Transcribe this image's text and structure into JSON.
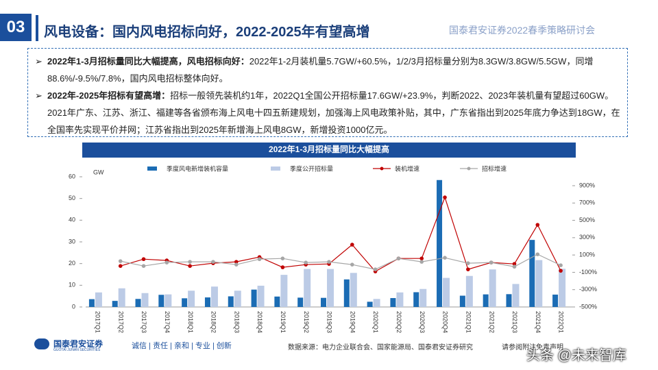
{
  "header": {
    "number": "03",
    "title": "风电设备：国内风电招标向好，2022-2025年有望高增",
    "event": "国泰君安证券2022春季策略研讨会"
  },
  "bullets": [
    {
      "bold": "2022年1-3月招标量同比大幅提高，风电招标向好：",
      "text": "2022年1-2月装机量5.7GW/+60.5%，1/2/3月招标量分别为8.3GW/3.8GW/5.5GW，同增88.6%/-9.5%/7.8%，国内风电招标整体向好。"
    },
    {
      "bold": "2022年-2025年招标有望高增：",
      "text": "招标一般领先装机约1年，2022Q1全国公开招标量17.6GW/+23.9%，判断2022、2023年装机量有望超过60GW。2021年广东、江苏、浙江、福建等各省颁布海上风电十四五新建规划，加强海上风电政策补贴，其中，广东省指出到2025年底力争达到18GW，在全国率先实现平价并网；江苏省指出到2025年新增海上风电8GW，新增投资1000亿元。"
    }
  ],
  "chart_data": {
    "type": "bar-line",
    "title": "2022年1-3月招标量同比大幅提高",
    "y_label": "GW",
    "categories": [
      "2017Q1",
      "2017Q2",
      "2017Q3",
      "2017Q4",
      "2018Q1",
      "2018Q2",
      "2018Q3",
      "2018Q4",
      "2019Q1",
      "2019Q2",
      "2019Q3",
      "2019Q4",
      "2020Q1",
      "2020Q2",
      "2020Q3",
      "2020Q4",
      "2021Q1",
      "2021Q2",
      "2021Q3",
      "2021Q4",
      "2022Q1"
    ],
    "series": [
      {
        "name": "季度风电新增装机容量",
        "kind": "bar",
        "color": "#1b6cb4",
        "values": [
          3.6,
          2.8,
          3.7,
          5.6,
          4.0,
          4.4,
          4.9,
          8.0,
          4.8,
          4.3,
          4.2,
          12.7,
          2.4,
          4.1,
          6.8,
          58.5,
          5.2,
          5.8,
          5.9,
          30.9,
          5.7
        ]
      },
      {
        "name": "季度公开招标量",
        "kind": "bar",
        "color": "#bccbe6",
        "values": [
          6.7,
          8.6,
          6.4,
          5.8,
          7.5,
          9.4,
          7.5,
          9.8,
          14.8,
          17.5,
          17.5,
          15.7,
          3.7,
          6.7,
          8.3,
          13.4,
          14.3,
          17.3,
          10.6,
          21.6,
          17.6
        ]
      },
      {
        "name": "装机增速",
        "kind": "line",
        "axis": "y2",
        "color": "#c00000",
        "values": [
          null,
          -27,
          52,
          37,
          -27,
          5,
          21,
          76,
          -42,
          -11,
          -3,
          219,
          -90,
          60,
          60,
          765,
          -66,
          13,
          -3,
          448,
          -82
        ]
      },
      {
        "name": "招标增速",
        "kind": "line",
        "axis": "y2",
        "color": "#a6a6a6",
        "values": [
          null,
          29,
          -27,
          13,
          21,
          21,
          -11,
          52,
          60,
          13,
          21,
          -11,
          -66,
          60,
          21,
          68,
          5,
          13,
          -35,
          108,
          -19
        ]
      }
    ],
    "ylim": [
      0,
      60
    ],
    "yticks": [
      0,
      10,
      20,
      30,
      40,
      50,
      60
    ],
    "y2lim": [
      -500,
      900
    ],
    "y2ticks": [
      {
        "value": -500,
        "label": "-500%"
      },
      {
        "value": -300,
        "label": "-300%"
      },
      {
        "value": -100,
        "label": "-100%"
      },
      {
        "value": 100,
        "label": "100%"
      },
      {
        "value": 300,
        "label": "300%"
      },
      {
        "value": 500,
        "label": "500%"
      },
      {
        "value": 700,
        "label": "700%"
      },
      {
        "value": 900,
        "label": "900%"
      }
    ],
    "grid": false
  },
  "footer": {
    "logo": "国泰君安证券",
    "logo_en": "GUOTAI JUNAN SECURITIES",
    "slogan": "诚信 | 责任 | 亲和 | 专业 | 创新",
    "source": "数据来源：电力企业联合会、国家能源局、国泰君安证券研究",
    "disclaimer": "请参阅附注免责声明",
    "watermark": "头条 @未来智库"
  }
}
